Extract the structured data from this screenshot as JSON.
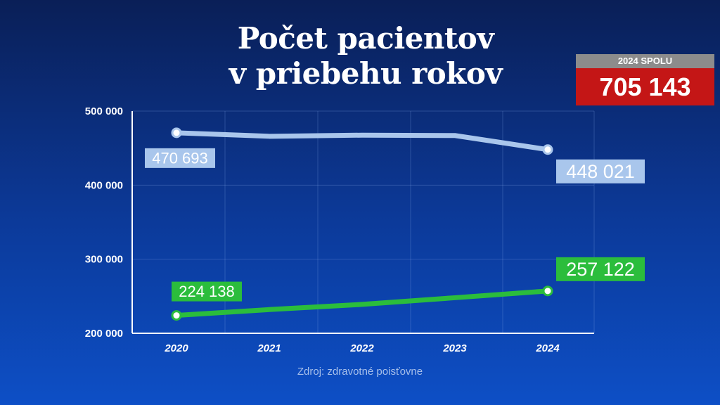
{
  "chart_data": {
    "type": "line",
    "title": "Počet pacientov v priebehu rokov",
    "title_lines": [
      "Počet pacientov",
      "v priebehu rokov"
    ],
    "categories": [
      "2020",
      "2021",
      "2022",
      "2023",
      "2024"
    ],
    "ylim": [
      200000,
      500000
    ],
    "yticks": [
      200000,
      300000,
      400000,
      500000
    ],
    "ytick_labels": [
      "200 000",
      "300 000",
      "400 000",
      "500 000"
    ],
    "grid": true,
    "series": [
      {
        "color": "#a9c6ec",
        "values": [
          470693,
          466000,
          467500,
          467000,
          448021
        ],
        "labels": [
          "470 693",
          "",
          "",
          "",
          "448 021"
        ],
        "label_bg": "#a9c6ec"
      },
      {
        "color": "#2bbd3c",
        "values": [
          224138,
          232000,
          239000,
          248000,
          257122
        ],
        "labels": [
          "224 138",
          "",
          "",
          "",
          "257 122"
        ],
        "label_bg": "#2bbd3c"
      }
    ],
    "source": "Zdroj: zdravotné poisťovne"
  },
  "total": {
    "label": "2024 SPOLU",
    "value": "705 143",
    "label_bg": "#8c8c8c",
    "value_bg": "#c41616"
  }
}
